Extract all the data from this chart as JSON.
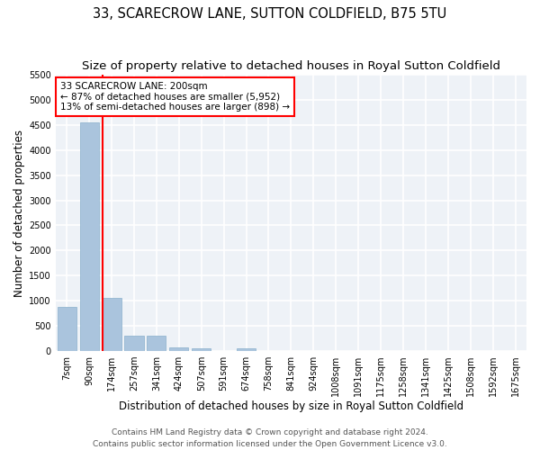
{
  "title": "33, SCARECROW LANE, SUTTON COLDFIELD, B75 5TU",
  "subtitle": "Size of property relative to detached houses in Royal Sutton Coldfield",
  "xlabel": "Distribution of detached houses by size in Royal Sutton Coldfield",
  "ylabel": "Number of detached properties",
  "categories": [
    "7sqm",
    "90sqm",
    "174sqm",
    "257sqm",
    "341sqm",
    "424sqm",
    "507sqm",
    "591sqm",
    "674sqm",
    "758sqm",
    "841sqm",
    "924sqm",
    "1008sqm",
    "1091sqm",
    "1175sqm",
    "1258sqm",
    "1341sqm",
    "1425sqm",
    "1508sqm",
    "1592sqm",
    "1675sqm"
  ],
  "values": [
    880,
    4560,
    1060,
    310,
    310,
    65,
    55,
    0,
    60,
    0,
    0,
    0,
    0,
    0,
    0,
    0,
    0,
    0,
    0,
    0,
    0
  ],
  "bar_color": "#aac4dd",
  "bar_edge_color": "#8ab0cc",
  "vline_color": "red",
  "annotation_text": "33 SCARECROW LANE: 200sqm\n← 87% of detached houses are smaller (5,952)\n13% of semi-detached houses are larger (898) →",
  "annotation_box_color": "white",
  "annotation_box_edge": "red",
  "ylim": [
    0,
    5500
  ],
  "yticks": [
    0,
    500,
    1000,
    1500,
    2000,
    2500,
    3000,
    3500,
    4000,
    4500,
    5000,
    5500
  ],
  "background_color": "#eef2f7",
  "grid_color": "white",
  "footer1": "Contains HM Land Registry data © Crown copyright and database right 2024.",
  "footer2": "Contains public sector information licensed under the Open Government Licence v3.0.",
  "title_fontsize": 10.5,
  "subtitle_fontsize": 9.5,
  "axis_label_fontsize": 8.5,
  "tick_fontsize": 7,
  "footer_fontsize": 6.5,
  "annot_fontsize": 7.5
}
